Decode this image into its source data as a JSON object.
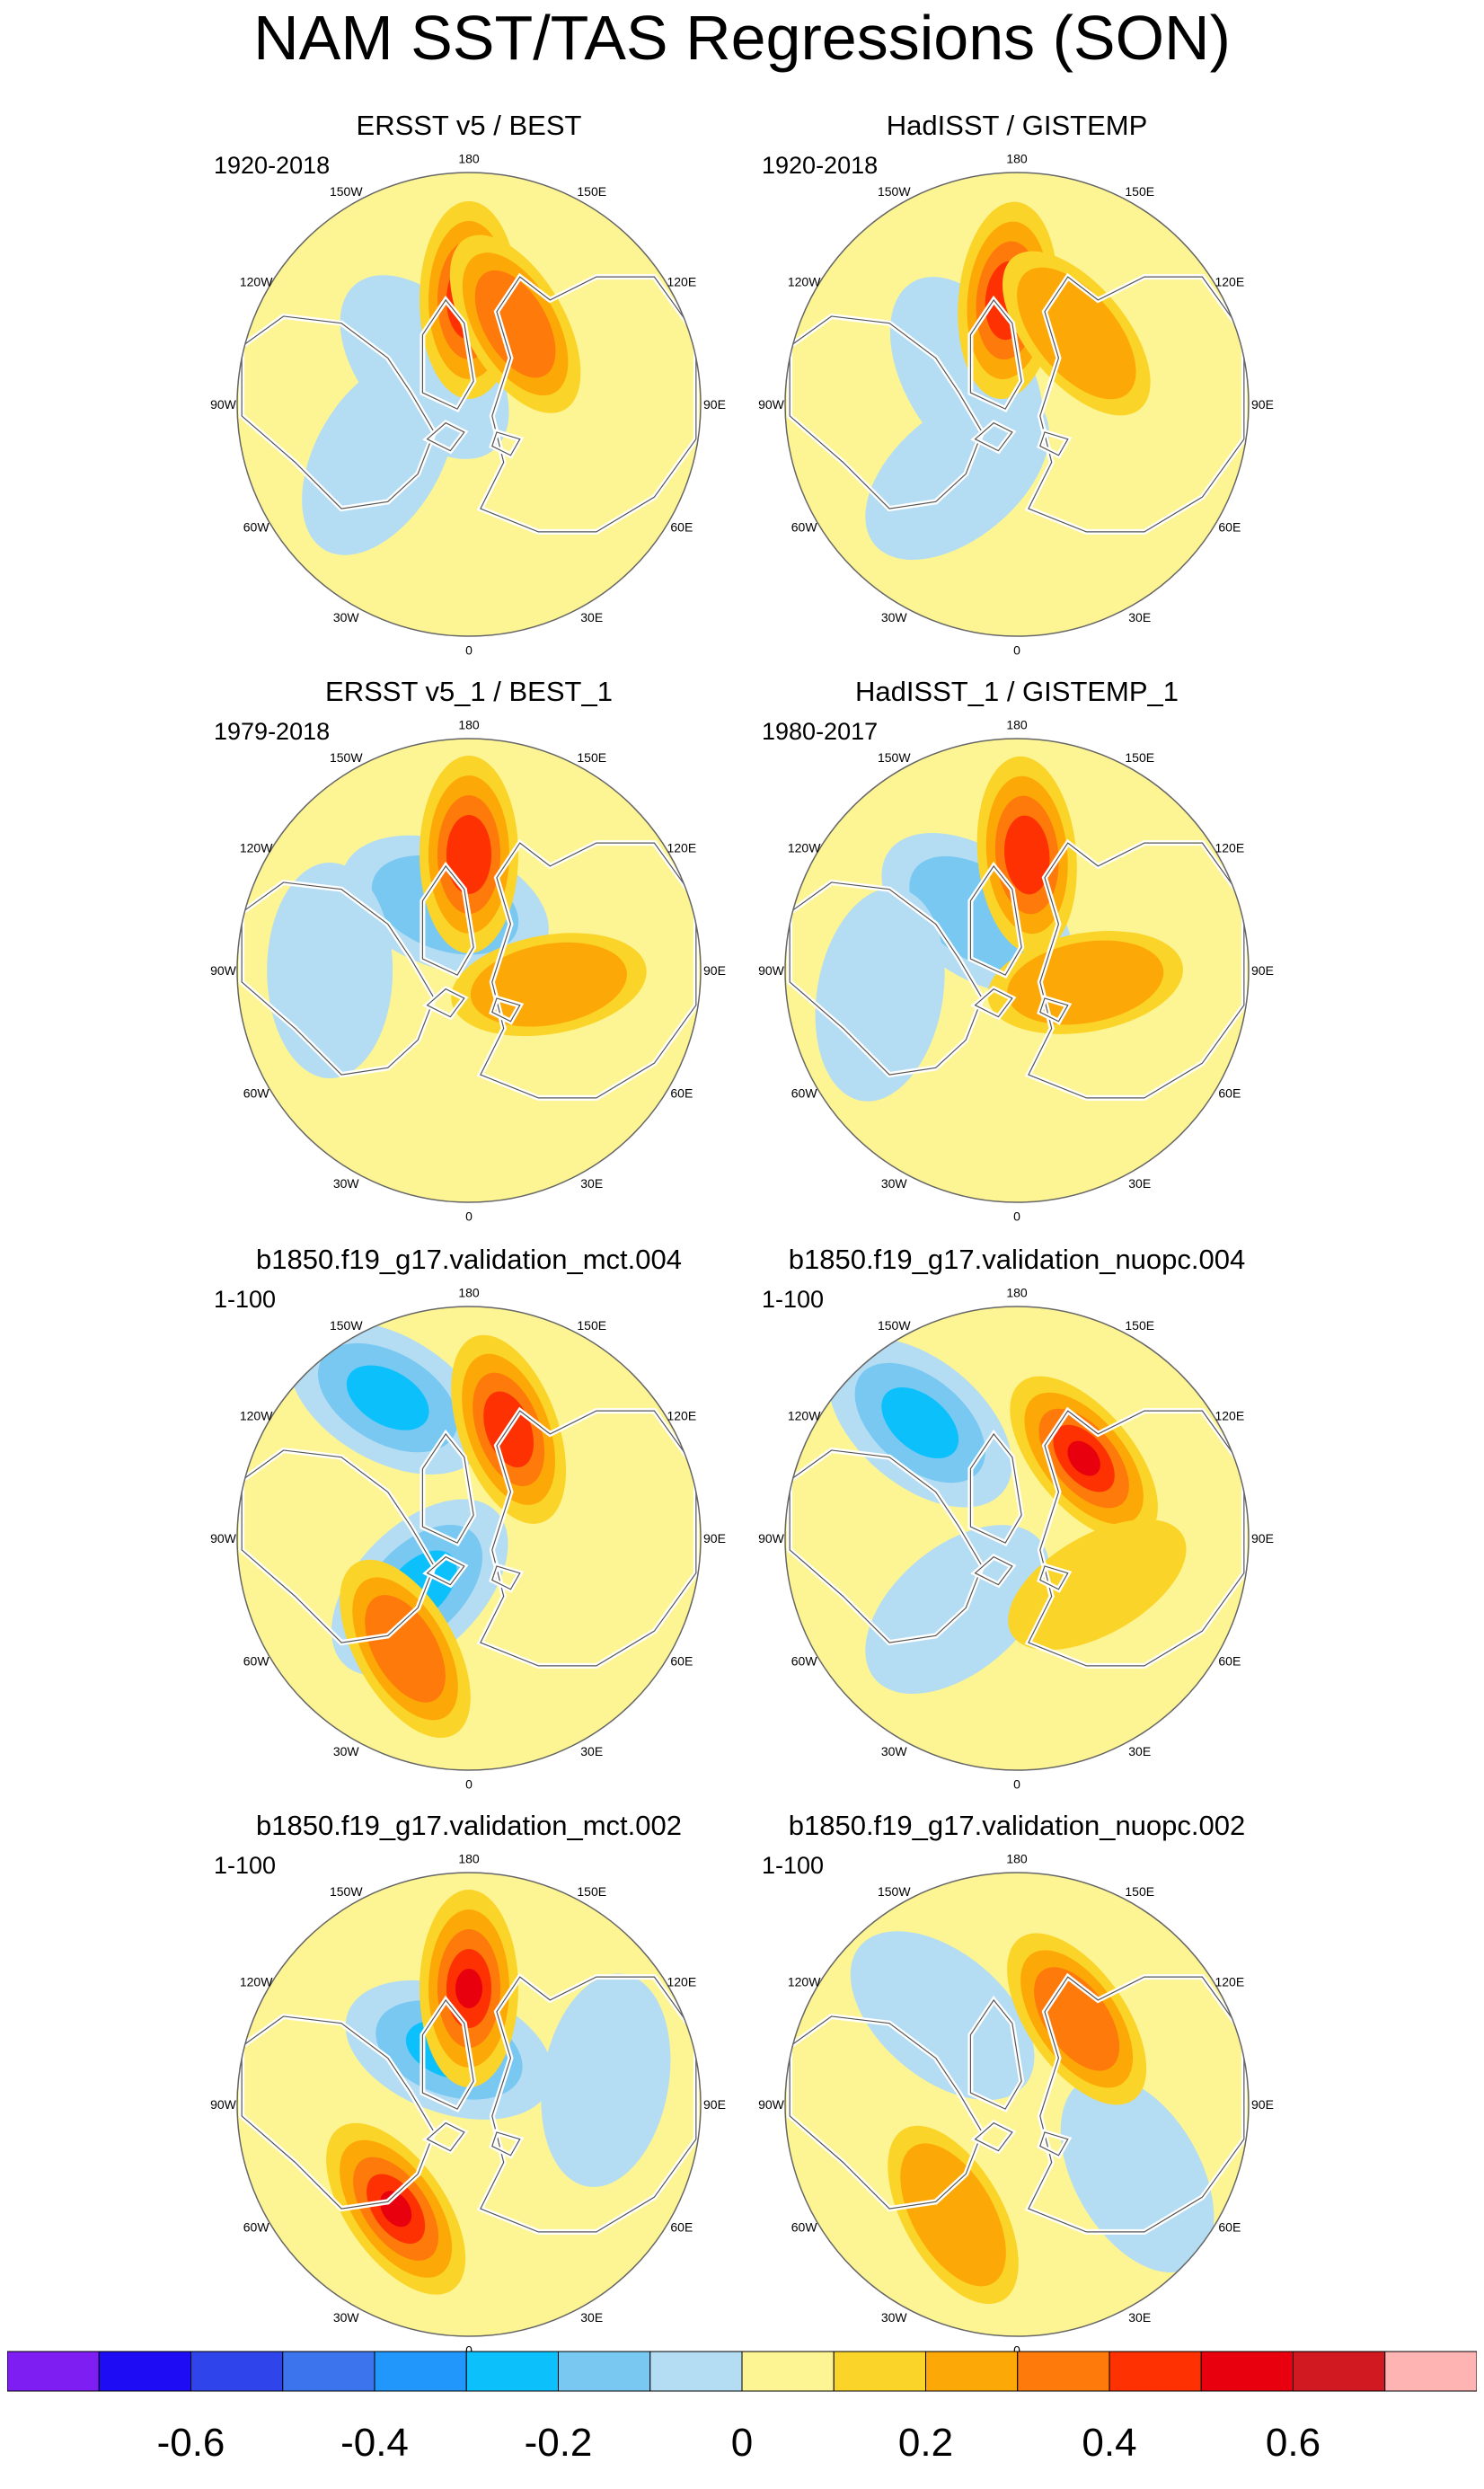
{
  "page": {
    "title": "NAM SST/TAS Regressions (SON)"
  },
  "panels": [
    {
      "id": "p1",
      "title": "ERSST v5 / BEST",
      "period": "1920-2018",
      "warm_core": [
        [
          180,
          0.45,
          0.45
        ],
        [
          150,
          0.4,
          0.25
        ]
      ],
      "cool": [
        [
          230,
          0.25,
          -0.12
        ],
        [
          300,
          0.45,
          -0.15
        ]
      ]
    },
    {
      "id": "p2",
      "title": "HadISST / GISTEMP",
      "period": "1920-2018",
      "warm_core": [
        [
          185,
          0.45,
          0.42
        ],
        [
          140,
          0.4,
          0.22
        ]
      ],
      "cool": [
        [
          240,
          0.25,
          -0.1
        ],
        [
          320,
          0.4,
          -0.12
        ]
      ]
    },
    {
      "id": "p3",
      "title": "ERSST v5_1 / BEST_1",
      "period": "1979-2018",
      "warm_core": [
        [
          180,
          0.5,
          0.42
        ],
        [
          80,
          0.35,
          0.22
        ]
      ],
      "cool": [
        [
          200,
          0.3,
          -0.2
        ],
        [
          270,
          0.6,
          -0.12
        ]
      ]
    },
    {
      "id": "p4",
      "title": "HadISST_1 / GISTEMP_1",
      "period": "1980-2017",
      "warm_core": [
        [
          175,
          0.5,
          0.38
        ],
        [
          80,
          0.3,
          0.22
        ]
      ],
      "cool": [
        [
          215,
          0.3,
          -0.22
        ],
        [
          280,
          0.6,
          -0.1
        ]
      ]
    },
    {
      "id": "p5",
      "title": "b1850.f19_g17.validation_mct.004",
      "period": "1-100",
      "warm_core": [
        [
          160,
          0.5,
          0.38
        ],
        [
          330,
          0.55,
          0.3
        ]
      ],
      "cool": [
        [
          210,
          0.7,
          -0.3
        ],
        [
          315,
          0.3,
          -0.32
        ]
      ]
    },
    {
      "id": "p6",
      "title": "b1850.f19_g17.validation_nuopc.004",
      "period": "1-100",
      "warm_core": [
        [
          140,
          0.45,
          0.5
        ],
        [
          60,
          0.4,
          0.12
        ]
      ],
      "cool": [
        [
          220,
          0.65,
          -0.32
        ],
        [
          320,
          0.4,
          -0.15
        ]
      ]
    },
    {
      "id": "p7",
      "title": "b1850.f19_g17.validation_mct.002",
      "period": "1-100",
      "warm_core": [
        [
          180,
          0.5,
          0.52
        ],
        [
          325,
          0.55,
          0.45
        ]
      ],
      "cool": [
        [
          200,
          0.25,
          -0.25
        ],
        [
          100,
          0.6,
          -0.1
        ]
      ]
    },
    {
      "id": "p8",
      "title": "b1850.f19_g17.validation_nuopc.002",
      "period": "1-100",
      "warm_core": [
        [
          145,
          0.45,
          0.3
        ],
        [
          330,
          0.55,
          0.22
        ]
      ],
      "cool": [
        [
          220,
          0.5,
          -0.15
        ],
        [
          60,
          0.6,
          -0.12
        ]
      ]
    }
  ],
  "longitude_labels": [
    "180",
    "150E",
    "120E",
    "90E",
    "60E",
    "30E",
    "0",
    "30W",
    "60W",
    "90W",
    "120W",
    "150W"
  ],
  "colorbar": {
    "colors": [
      "#7e1ef2",
      "#1e0cf5",
      "#2f44eb",
      "#3b74ed",
      "#2197fb",
      "#0cc0fb",
      "#78c8f2",
      "#b4dcf2",
      "#fdf594",
      "#fbd42a",
      "#fca907",
      "#fd7a0b",
      "#fd3102",
      "#e8000f",
      "#d01920",
      "#ffb4b4"
    ],
    "labels": [
      "-0.6",
      "-0.4",
      "-0.2",
      "0",
      "0.2",
      "0.4",
      "0.6"
    ],
    "levels": [
      -0.7,
      -0.6,
      -0.5,
      -0.4,
      -0.3,
      -0.2,
      -0.1,
      0,
      0.1,
      0.2,
      0.3,
      0.4,
      0.5,
      0.6,
      0.7
    ]
  }
}
